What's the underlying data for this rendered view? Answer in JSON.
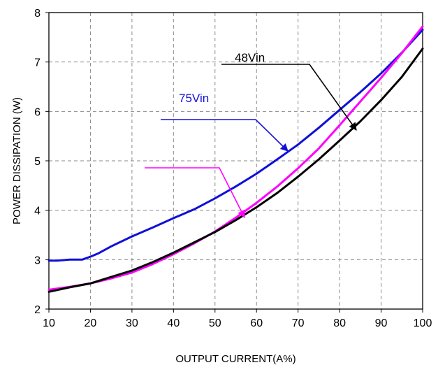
{
  "chart_data": {
    "type": "line",
    "title": "",
    "xlabel": "OUTPUT CURRENT(A%)",
    "ylabel": "POWER DISSIPATION (W)",
    "xlim": [
      10,
      100
    ],
    "ylim": [
      2,
      8
    ],
    "xticks": [
      10,
      20,
      30,
      40,
      50,
      60,
      70,
      80,
      90,
      100
    ],
    "yticks": [
      2,
      3,
      4,
      5,
      6,
      7,
      8
    ],
    "grid": true,
    "grid_style": "dashed",
    "colors": {
      "blue": "#1010d8",
      "black": "#000000",
      "magenta": "#ff00ff"
    },
    "series": [
      {
        "name": "75Vin",
        "color": "#1010d8",
        "x": [
          10,
          12,
          15,
          18,
          20,
          22,
          25,
          30,
          35,
          40,
          45,
          50,
          55,
          60,
          65,
          70,
          75,
          80,
          85,
          90,
          95,
          100
        ],
        "y": [
          2.98,
          2.98,
          3.0,
          3.0,
          3.06,
          3.13,
          3.27,
          3.47,
          3.65,
          3.84,
          4.02,
          4.24,
          4.48,
          4.74,
          5.03,
          5.33,
          5.67,
          6.03,
          6.39,
          6.77,
          7.19,
          7.65
        ]
      },
      {
        "name": "48Vin",
        "color": "#000000",
        "x": [
          10,
          15,
          20,
          25,
          30,
          35,
          40,
          45,
          50,
          55,
          60,
          65,
          70,
          75,
          80,
          85,
          90,
          95,
          100
        ],
        "y": [
          2.35,
          2.44,
          2.52,
          2.65,
          2.78,
          2.95,
          3.14,
          3.35,
          3.56,
          3.8,
          4.06,
          4.35,
          4.68,
          5.03,
          5.41,
          5.8,
          6.23,
          6.7,
          7.27
        ]
      },
      {
        "name": "",
        "color": "#ff00ff",
        "x": [
          10,
          15,
          20,
          25,
          30,
          35,
          40,
          45,
          50,
          55,
          60,
          65,
          70,
          75,
          80,
          85,
          90,
          95,
          100
        ],
        "y": [
          2.39,
          2.45,
          2.52,
          2.62,
          2.74,
          2.91,
          3.11,
          3.33,
          3.57,
          3.85,
          4.15,
          4.48,
          4.85,
          5.25,
          5.72,
          6.2,
          6.68,
          7.18,
          7.72
        ]
      }
    ],
    "annotations": [
      {
        "text": "75Vin",
        "color": "#1010d8",
        "points_to_series": "75Vin"
      },
      {
        "text": "48Vin",
        "color": "#000000",
        "points_to_series": "48Vin"
      },
      {
        "text": "",
        "color": "#ff00ff",
        "points_to_series": "magenta"
      }
    ]
  }
}
